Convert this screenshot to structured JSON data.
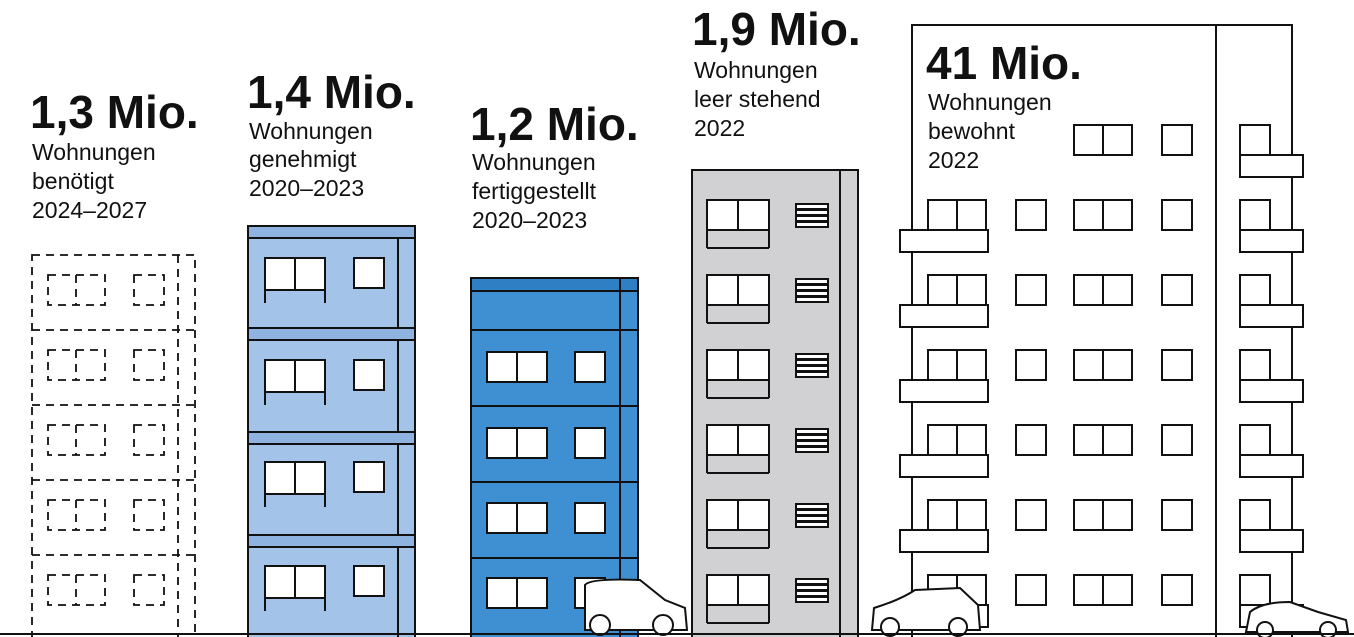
{
  "buildings": [
    {
      "value": "1,3 Mio.",
      "lines": [
        "Wohnungen",
        "benötigt",
        "2024–2027"
      ]
    },
    {
      "value": "1,4 Mio.",
      "lines": [
        "Wohnungen",
        "genehmigt",
        "2020–2023"
      ]
    },
    {
      "value": "1,2 Mio.",
      "lines": [
        "Wohnungen",
        "fertiggestellt",
        "2020–2023"
      ]
    },
    {
      "value": "1,9 Mio.",
      "lines": [
        "Wohnungen",
        "leer stehend",
        "2022"
      ]
    },
    {
      "value": "41 Mio.",
      "lines": [
        "Wohnungen",
        "bewohnt",
        "2022"
      ]
    }
  ]
}
